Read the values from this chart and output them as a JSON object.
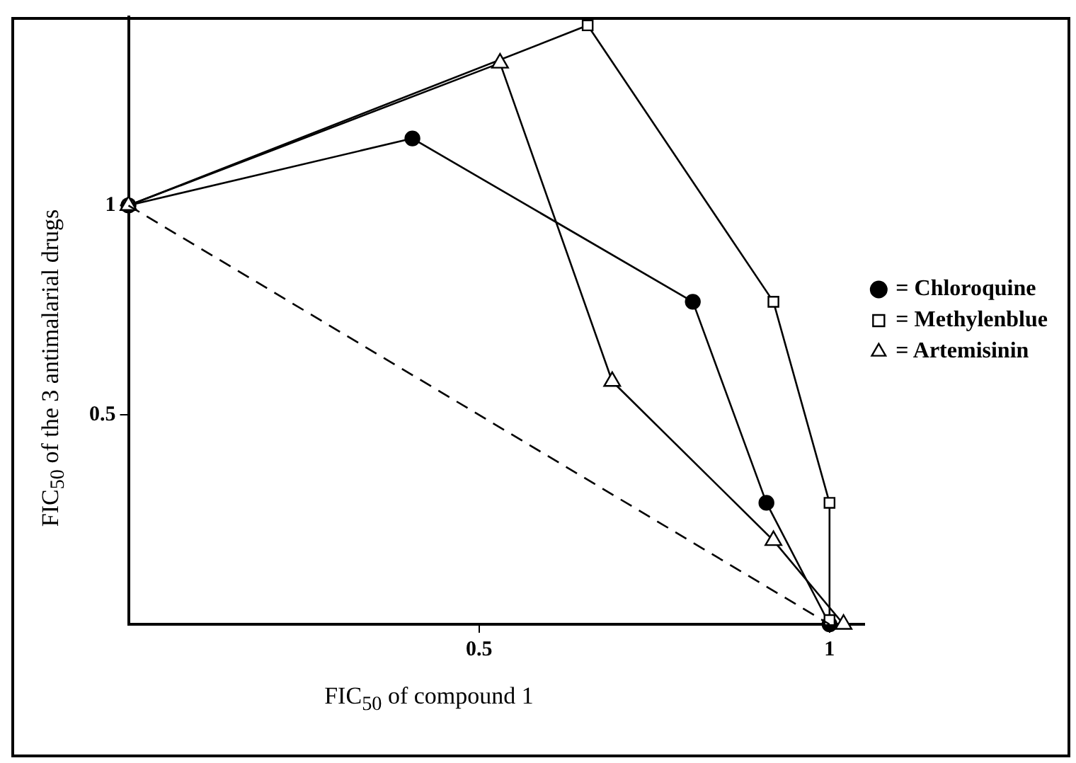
{
  "chart_data": {
    "type": "line",
    "xlabel": "FIC$_{50}$ of compound 1",
    "ylabel": "FIC$_{50}$ of the 3 antimalarial drugs",
    "series": [
      {
        "name": "= Chloroquine",
        "color": "#000000",
        "marker": "circle",
        "x": [
          0,
          0.405,
          0.805,
          0.91,
          1.0
        ],
        "values": [
          1.0,
          1.16,
          0.77,
          0.29,
          0.0
        ]
      },
      {
        "name": "= Methylenblue",
        "color": "#000000",
        "marker": "square",
        "x": [
          0,
          0.655,
          0.92,
          1.0,
          1.0
        ],
        "values": [
          1.0,
          1.43,
          0.77,
          0.29,
          0.01
        ]
      },
      {
        "name": "= Artemisinin",
        "color": "#000000",
        "marker": "triangle",
        "x": [
          0,
          0.53,
          0.69,
          0.92,
          1.02
        ],
        "values": [
          1.0,
          1.34,
          0.58,
          0.2,
          0.0
        ]
      },
      {
        "color": "#000000",
        "marker": "none",
        "line_style": "dashed",
        "x": [
          0,
          1
        ],
        "values": [
          1,
          0
        ]
      }
    ],
    "xlim": [
      0,
      1.05
    ],
    "xticks": [
      0.5,
      1
    ],
    "ylim": [
      0,
      1.45
    ],
    "yticks": [
      0.5,
      1
    ],
    "grid": false,
    "legend": "right"
  }
}
